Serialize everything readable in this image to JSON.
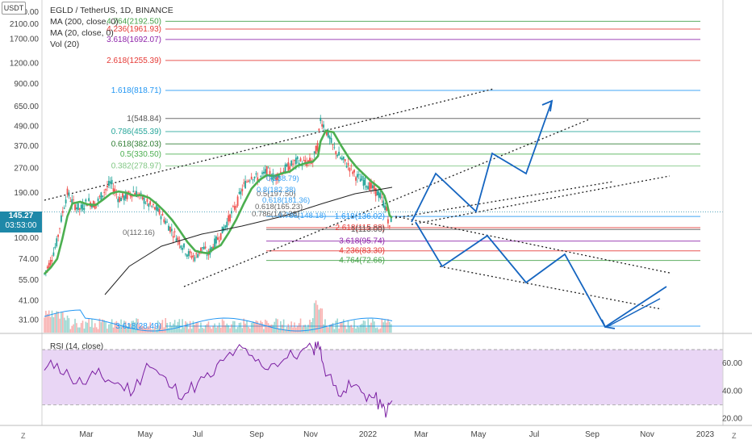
{
  "header": {
    "title": "EGLD / TetherUS, 1D, BINANCE",
    "ma200": "MA (200, close, 0)",
    "ma20": "MA (20, close, 0)",
    "vol": "Vol (20)",
    "currency": "USDT"
  },
  "price_badge": {
    "price": "145.27",
    "countdown": "03:53:00"
  },
  "rsi_label": "RSI (14, close)",
  "footer": {
    "left": "Z",
    "right": "Z"
  },
  "colors": {
    "candle_up": "#26a69a",
    "candle_down": "#ef5350",
    "ma20": "#4caf50",
    "ma200": "#222222",
    "projection": "#1565c0",
    "rsi": "#7b1fa2",
    "rsi_band": "#e9d6f5"
  },
  "chart_data": {
    "type": "candlestick",
    "scale": "log",
    "ylim": [
      26,
      2900
    ],
    "y_ticks": [
      "2500.00",
      "2100.00",
      "1700.00",
      "1200.00",
      "900.00",
      "650.00",
      "490.00",
      "370.00",
      "270.00",
      "190.00",
      "145.27",
      "100.00",
      "74.00",
      "55.00",
      "41.00",
      "31.00"
    ],
    "x_ticks": [
      "Mar",
      "May",
      "Jul",
      "Sep",
      "Nov",
      "2022",
      "Mar",
      "May",
      "Jul",
      "Sep",
      "Nov",
      "2023"
    ],
    "price_series": [
      [
        0,
        60
      ],
      [
        5,
        72
      ],
      [
        10,
        95
      ],
      [
        14,
        140
      ],
      [
        18,
        190
      ],
      [
        22,
        165
      ],
      [
        28,
        150
      ],
      [
        34,
        170
      ],
      [
        40,
        160
      ],
      [
        46,
        190
      ],
      [
        52,
        220
      ],
      [
        58,
        175
      ],
      [
        64,
        180
      ],
      [
        70,
        195
      ],
      [
        76,
        178
      ],
      [
        82,
        160
      ],
      [
        88,
        150
      ],
      [
        94,
        130
      ],
      [
        100,
        110
      ],
      [
        106,
        95
      ],
      [
        112,
        80
      ],
      [
        118,
        76
      ],
      [
        124,
        88
      ],
      [
        128,
        78
      ],
      [
        132,
        90
      ],
      [
        138,
        105
      ],
      [
        144,
        130
      ],
      [
        150,
        160
      ],
      [
        156,
        210
      ],
      [
        162,
        245
      ],
      [
        168,
        230
      ],
      [
        174,
        260
      ],
      [
        180,
        235
      ],
      [
        186,
        260
      ],
      [
        192,
        280
      ],
      [
        198,
        300
      ],
      [
        204,
        290
      ],
      [
        210,
        300
      ],
      [
        214,
        380
      ],
      [
        216,
        545
      ],
      [
        220,
        470
      ],
      [
        226,
        360
      ],
      [
        232,
        310
      ],
      [
        238,
        280
      ],
      [
        244,
        240
      ],
      [
        250,
        225
      ],
      [
        256,
        205
      ],
      [
        262,
        185
      ],
      [
        266,
        160
      ],
      [
        268,
        145
      ],
      [
        270,
        113
      ],
      [
        272,
        145
      ]
    ],
    "fib_levels": [
      {
        "label": "4.764(2192.50)",
        "value": 2192.5,
        "color": "#43a047"
      },
      {
        "label": "4.236(1961.93)",
        "value": 1961.93,
        "color": "#e53935"
      },
      {
        "label": "3.618(1692.07)",
        "value": 1692.07,
        "color": "#8e24aa"
      },
      {
        "label": "2.618(1255.39)",
        "value": 1255.39,
        "color": "#e53935"
      },
      {
        "label": "1.618(818.71)",
        "value": 818.71,
        "color": "#2196f3"
      },
      {
        "label": "1(548.84)",
        "value": 548.84,
        "color": "#555555"
      },
      {
        "label": "0.786(455.39)",
        "value": 455.39,
        "color": "#26a69a"
      },
      {
        "label": "0.618(382.03)",
        "value": 382.03,
        "color": "#2e7d32"
      },
      {
        "label": "0.5(330.50)",
        "value": 330.5,
        "color": "#4caf50"
      },
      {
        "label": "0.382(278.97)",
        "value": 278.97,
        "color": "#81c784"
      },
      {
        "label": "1.618(136.02)",
        "value": 136.02,
        "color": "#2196f3"
      },
      {
        "label": "2.618(115.88)",
        "value": 115.88,
        "color": "#e53935"
      },
      {
        "label": "1(113.00)",
        "value": 113.0,
        "color": "#555555"
      },
      {
        "label": "3.618(95.74)",
        "value": 95.74,
        "color": "#8e24aa"
      },
      {
        "label": "4.236(83.30)",
        "value": 83.3,
        "color": "#e53935"
      },
      {
        "label": "4.764(72.66)",
        "value": 72.66,
        "color": "#43a047"
      },
      {
        "label": "3.618(28.49)",
        "value": 28.49,
        "color": "#2196f3"
      }
    ],
    "overlap_labels": [
      "0(112.16)",
      "0(238.79)",
      "0.5(197.50)",
      "0.618(181.36)",
      "0.618(165.23)",
      "0.786(148.18)",
      "0.786(142.28)",
      "0.8(182.38)"
    ],
    "rsi_ticks": [
      "60.00",
      "40.00",
      "20.00"
    ],
    "rsi_range": [
      15,
      80
    ],
    "rsi_band": [
      30,
      70
    ],
    "rsi_series": [
      [
        0,
        55
      ],
      [
        10,
        60
      ],
      [
        20,
        50
      ],
      [
        30,
        45
      ],
      [
        40,
        52
      ],
      [
        50,
        48
      ],
      [
        60,
        44
      ],
      [
        70,
        40
      ],
      [
        80,
        60
      ],
      [
        90,
        52
      ],
      [
        100,
        42
      ],
      [
        110,
        38
      ],
      [
        120,
        46
      ],
      [
        130,
        50
      ],
      [
        140,
        62
      ],
      [
        150,
        70
      ],
      [
        160,
        66
      ],
      [
        170,
        58
      ],
      [
        180,
        60
      ],
      [
        190,
        64
      ],
      [
        200,
        68
      ],
      [
        210,
        70
      ],
      [
        214,
        76
      ],
      [
        218,
        60
      ],
      [
        226,
        44
      ],
      [
        234,
        40
      ],
      [
        242,
        44
      ],
      [
        250,
        38
      ],
      [
        258,
        35
      ],
      [
        264,
        28
      ],
      [
        268,
        25
      ],
      [
        272,
        33
      ]
    ]
  }
}
